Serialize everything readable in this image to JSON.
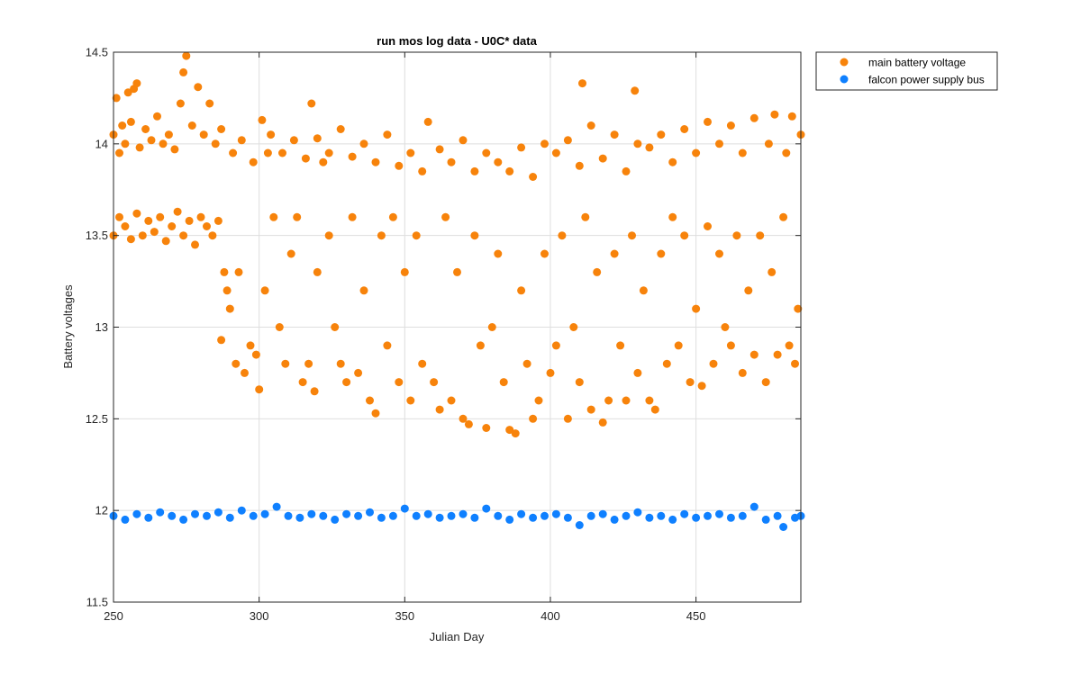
{
  "chart_data": {
    "type": "scatter",
    "title": "run mos log data - U0C* data",
    "xlabel": "Julian Day",
    "ylabel": "Battery voltages",
    "xlim": [
      250,
      486
    ],
    "ylim": [
      11.5,
      14.5
    ],
    "xticks": [
      250,
      300,
      350,
      400,
      450
    ],
    "xtick_labels": [
      "250",
      "300",
      "350",
      "400",
      "450"
    ],
    "yticks": [
      11.5,
      12,
      12.5,
      13,
      13.5,
      14,
      14.5
    ],
    "ytick_labels": [
      "11.5",
      "12",
      "12.5",
      "13",
      "13.5",
      "14",
      "14.5"
    ],
    "grid": true,
    "legend_position": "outside-top-right",
    "series": [
      {
        "name": "main battery voltage",
        "color": "#f7830b",
        "marker": "filled-circle",
        "points": [
          [
            250,
            14.05
          ],
          [
            251,
            14.25
          ],
          [
            253,
            14.1
          ],
          [
            255,
            14.28
          ],
          [
            257,
            14.3
          ],
          [
            258,
            14.33
          ],
          [
            252,
            13.95
          ],
          [
            254,
            14.0
          ],
          [
            256,
            14.12
          ],
          [
            259,
            13.98
          ],
          [
            261,
            14.08
          ],
          [
            263,
            14.02
          ],
          [
            265,
            14.15
          ],
          [
            267,
            14.0
          ],
          [
            269,
            14.05
          ],
          [
            271,
            13.97
          ],
          [
            273,
            14.22
          ],
          [
            274,
            14.39
          ],
          [
            275,
            14.48
          ],
          [
            277,
            14.1
          ],
          [
            279,
            14.31
          ],
          [
            281,
            14.05
          ],
          [
            283,
            14.22
          ],
          [
            285,
            14.0
          ],
          [
            287,
            14.08
          ],
          [
            250,
            13.5
          ],
          [
            252,
            13.6
          ],
          [
            254,
            13.55
          ],
          [
            256,
            13.48
          ],
          [
            258,
            13.62
          ],
          [
            260,
            13.5
          ],
          [
            262,
            13.58
          ],
          [
            264,
            13.52
          ],
          [
            266,
            13.6
          ],
          [
            268,
            13.47
          ],
          [
            270,
            13.55
          ],
          [
            272,
            13.63
          ],
          [
            274,
            13.5
          ],
          [
            276,
            13.58
          ],
          [
            278,
            13.45
          ],
          [
            280,
            13.6
          ],
          [
            282,
            13.55
          ],
          [
            284,
            13.5
          ],
          [
            286,
            13.58
          ],
          [
            288,
            13.3
          ],
          [
            289,
            13.2
          ],
          [
            287,
            12.93
          ],
          [
            290,
            13.1
          ],
          [
            292,
            12.8
          ],
          [
            293,
            13.3
          ],
          [
            295,
            12.75
          ],
          [
            297,
            12.9
          ],
          [
            299,
            12.85
          ],
          [
            300,
            12.66
          ],
          [
            302,
            13.2
          ],
          [
            303,
            13.95
          ],
          [
            305,
            13.6
          ],
          [
            307,
            13.0
          ],
          [
            309,
            12.8
          ],
          [
            311,
            13.4
          ],
          [
            313,
            13.6
          ],
          [
            315,
            12.7
          ],
          [
            317,
            12.8
          ],
          [
            318,
            14.22
          ],
          [
            319,
            12.65
          ],
          [
            320,
            13.3
          ],
          [
            322,
            13.9
          ],
          [
            324,
            13.5
          ],
          [
            326,
            13.0
          ],
          [
            328,
            12.8
          ],
          [
            330,
            12.7
          ],
          [
            332,
            13.6
          ],
          [
            334,
            12.75
          ],
          [
            336,
            13.2
          ],
          [
            338,
            12.6
          ],
          [
            340,
            12.53
          ],
          [
            342,
            13.5
          ],
          [
            344,
            12.9
          ],
          [
            346,
            13.6
          ],
          [
            348,
            12.7
          ],
          [
            350,
            13.3
          ],
          [
            352,
            12.6
          ],
          [
            354,
            13.5
          ],
          [
            356,
            12.8
          ],
          [
            358,
            14.12
          ],
          [
            360,
            12.7
          ],
          [
            362,
            12.55
          ],
          [
            364,
            13.6
          ],
          [
            366,
            12.6
          ],
          [
            368,
            13.3
          ],
          [
            370,
            12.5
          ],
          [
            372,
            12.47
          ],
          [
            374,
            13.5
          ],
          [
            376,
            12.9
          ],
          [
            378,
            12.45
          ],
          [
            380,
            13.0
          ],
          [
            382,
            13.4
          ],
          [
            384,
            12.7
          ],
          [
            386,
            12.44
          ],
          [
            388,
            12.42
          ],
          [
            390,
            13.2
          ],
          [
            392,
            12.8
          ],
          [
            394,
            12.5
          ],
          [
            396,
            12.6
          ],
          [
            398,
            13.4
          ],
          [
            400,
            12.75
          ],
          [
            402,
            12.9
          ],
          [
            404,
            13.5
          ],
          [
            406,
            12.5
          ],
          [
            408,
            13.0
          ],
          [
            410,
            12.7
          ],
          [
            411,
            14.33
          ],
          [
            412,
            13.6
          ],
          [
            414,
            12.55
          ],
          [
            416,
            13.3
          ],
          [
            418,
            12.48
          ],
          [
            420,
            12.6
          ],
          [
            422,
            13.4
          ],
          [
            424,
            12.9
          ],
          [
            426,
            12.6
          ],
          [
            428,
            13.5
          ],
          [
            429,
            14.29
          ],
          [
            430,
            12.75
          ],
          [
            432,
            13.2
          ],
          [
            434,
            12.6
          ],
          [
            436,
            12.55
          ],
          [
            438,
            13.4
          ],
          [
            440,
            12.8
          ],
          [
            442,
            13.6
          ],
          [
            444,
            12.9
          ],
          [
            446,
            13.5
          ],
          [
            448,
            12.7
          ],
          [
            450,
            13.1
          ],
          [
            452,
            12.68
          ],
          [
            454,
            13.55
          ],
          [
            456,
            12.8
          ],
          [
            458,
            13.4
          ],
          [
            460,
            13.0
          ],
          [
            462,
            12.9
          ],
          [
            464,
            13.5
          ],
          [
            466,
            12.75
          ],
          [
            468,
            13.2
          ],
          [
            470,
            12.85
          ],
          [
            472,
            13.5
          ],
          [
            474,
            12.7
          ],
          [
            476,
            13.3
          ],
          [
            478,
            12.85
          ],
          [
            480,
            13.6
          ],
          [
            482,
            12.9
          ],
          [
            484,
            12.8
          ],
          [
            485,
            13.1
          ],
          [
            486,
            14.05
          ],
          [
            483,
            14.15
          ],
          [
            481,
            13.95
          ],
          [
            477,
            14.16
          ],
          [
            475,
            14.0
          ],
          [
            470,
            14.14
          ],
          [
            466,
            13.95
          ],
          [
            462,
            14.1
          ],
          [
            458,
            14.0
          ],
          [
            454,
            14.12
          ],
          [
            450,
            13.95
          ],
          [
            446,
            14.08
          ],
          [
            442,
            13.9
          ],
          [
            438,
            14.05
          ],
          [
            434,
            13.98
          ],
          [
            430,
            14.0
          ],
          [
            426,
            13.85
          ],
          [
            422,
            14.05
          ],
          [
            418,
            13.92
          ],
          [
            414,
            14.1
          ],
          [
            410,
            13.88
          ],
          [
            406,
            14.02
          ],
          [
            402,
            13.95
          ],
          [
            398,
            14.0
          ],
          [
            394,
            13.82
          ],
          [
            390,
            13.98
          ],
          [
            386,
            13.85
          ],
          [
            382,
            13.9
          ],
          [
            378,
            13.95
          ],
          [
            374,
            13.85
          ],
          [
            370,
            14.02
          ],
          [
            366,
            13.9
          ],
          [
            362,
            13.97
          ],
          [
            356,
            13.85
          ],
          [
            352,
            13.95
          ],
          [
            348,
            13.88
          ],
          [
            344,
            14.05
          ],
          [
            340,
            13.9
          ],
          [
            336,
            14.0
          ],
          [
            332,
            13.93
          ],
          [
            328,
            14.08
          ],
          [
            324,
            13.95
          ],
          [
            320,
            14.03
          ],
          [
            316,
            13.92
          ],
          [
            312,
            14.02
          ],
          [
            308,
            13.95
          ],
          [
            304,
            14.05
          ],
          [
            301,
            14.13
          ],
          [
            298,
            13.9
          ],
          [
            294,
            14.02
          ],
          [
            291,
            13.95
          ]
        ]
      },
      {
        "name": "falcon power supply bus",
        "color": "#0f80ff",
        "marker": "filled-circle",
        "points": [
          [
            250,
            11.97
          ],
          [
            254,
            11.95
          ],
          [
            258,
            11.98
          ],
          [
            262,
            11.96
          ],
          [
            266,
            11.99
          ],
          [
            270,
            11.97
          ],
          [
            274,
            11.95
          ],
          [
            278,
            11.98
          ],
          [
            282,
            11.97
          ],
          [
            286,
            11.99
          ],
          [
            290,
            11.96
          ],
          [
            294,
            12.0
          ],
          [
            298,
            11.97
          ],
          [
            302,
            11.98
          ],
          [
            306,
            12.02
          ],
          [
            310,
            11.97
          ],
          [
            314,
            11.96
          ],
          [
            318,
            11.98
          ],
          [
            322,
            11.97
          ],
          [
            326,
            11.95
          ],
          [
            330,
            11.98
          ],
          [
            334,
            11.97
          ],
          [
            338,
            11.99
          ],
          [
            342,
            11.96
          ],
          [
            346,
            11.97
          ],
          [
            350,
            12.01
          ],
          [
            354,
            11.97
          ],
          [
            358,
            11.98
          ],
          [
            362,
            11.96
          ],
          [
            366,
            11.97
          ],
          [
            370,
            11.98
          ],
          [
            374,
            11.96
          ],
          [
            378,
            12.01
          ],
          [
            382,
            11.97
          ],
          [
            386,
            11.95
          ],
          [
            390,
            11.98
          ],
          [
            394,
            11.96
          ],
          [
            398,
            11.97
          ],
          [
            402,
            11.98
          ],
          [
            406,
            11.96
          ],
          [
            410,
            11.92
          ],
          [
            414,
            11.97
          ],
          [
            418,
            11.98
          ],
          [
            422,
            11.95
          ],
          [
            426,
            11.97
          ],
          [
            430,
            11.99
          ],
          [
            434,
            11.96
          ],
          [
            438,
            11.97
          ],
          [
            442,
            11.95
          ],
          [
            446,
            11.98
          ],
          [
            450,
            11.96
          ],
          [
            454,
            11.97
          ],
          [
            458,
            11.98
          ],
          [
            462,
            11.96
          ],
          [
            466,
            11.97
          ],
          [
            470,
            12.02
          ],
          [
            474,
            11.95
          ],
          [
            478,
            11.97
          ],
          [
            480,
            11.91
          ],
          [
            484,
            11.96
          ],
          [
            486,
            11.97
          ]
        ]
      }
    ]
  }
}
